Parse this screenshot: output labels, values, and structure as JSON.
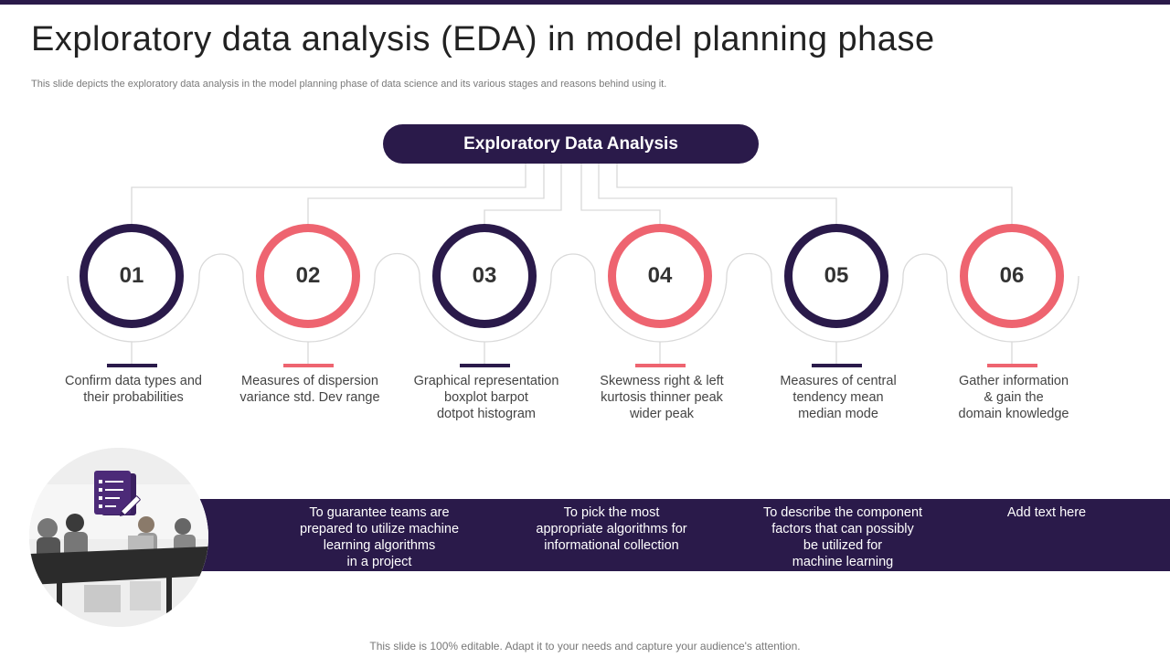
{
  "slide": {
    "title": "Exploratory data analysis (EDA) in model planning phase",
    "subtitle": "This slide depicts the exploratory data analysis in the model planning phase of data science and its various stages and reasons behind using it.",
    "center_label": "Exploratory Data Analysis",
    "footer": "This slide is 100% editable. Adapt it to your needs and capture your audience's attention."
  },
  "colors": {
    "dark": "#2a1a4a",
    "accent": "#ee6470"
  },
  "stages": [
    {
      "number": "01",
      "description": "Confirm data types and\ntheir probabilities",
      "color": "dark"
    },
    {
      "number": "02",
      "description": "Measures of dispersion\nvariance std. Dev range",
      "color": "accent"
    },
    {
      "number": "03",
      "description": "Graphical representation\nboxplot barpot\ndotpot histogram",
      "color": "dark"
    },
    {
      "number": "04",
      "description": "Skewness right & left\nkurtosis thinner peak\nwider peak",
      "color": "accent"
    },
    {
      "number": "05",
      "description": "Measures of central\ntendency mean\nmedian mode",
      "color": "dark"
    },
    {
      "number": "06",
      "description": "Gather information\n& gain the\ndomain knowledge",
      "color": "accent"
    }
  ],
  "reasons": [
    "To guarantee teams are\nprepared to utilize machine\nlearning algorithms\nin a project",
    "To pick the most\nappropriate algorithms for\ninformational collection",
    "To describe the component\nfactors that can possibly\nbe utilized for\nmachine learning",
    "Add text here"
  ],
  "icons": {
    "photo_badge": "checklist-pen-icon"
  }
}
